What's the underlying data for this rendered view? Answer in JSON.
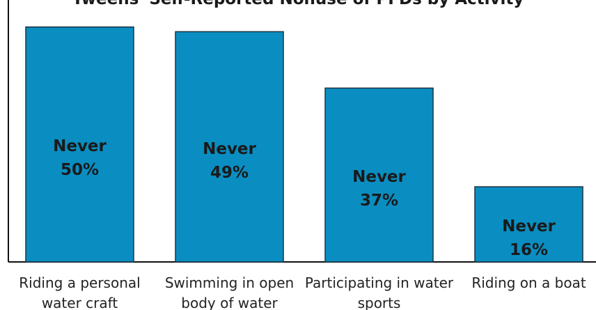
{
  "chart_data": {
    "type": "bar",
    "title": "Tweens' Self-Reported Nonuse of PFDs by Activity",
    "categories": [
      "Riding a personal water craft",
      "Swimming in open body of water",
      "Participating in water sports",
      "Riding on a boat"
    ],
    "values": [
      50,
      49,
      37,
      16
    ],
    "value_labels": [
      "50%",
      "49%",
      "37%",
      "16%"
    ],
    "value_label_prefix": "Never",
    "color": "#0a8ec2",
    "ylim": [
      0,
      55
    ]
  }
}
